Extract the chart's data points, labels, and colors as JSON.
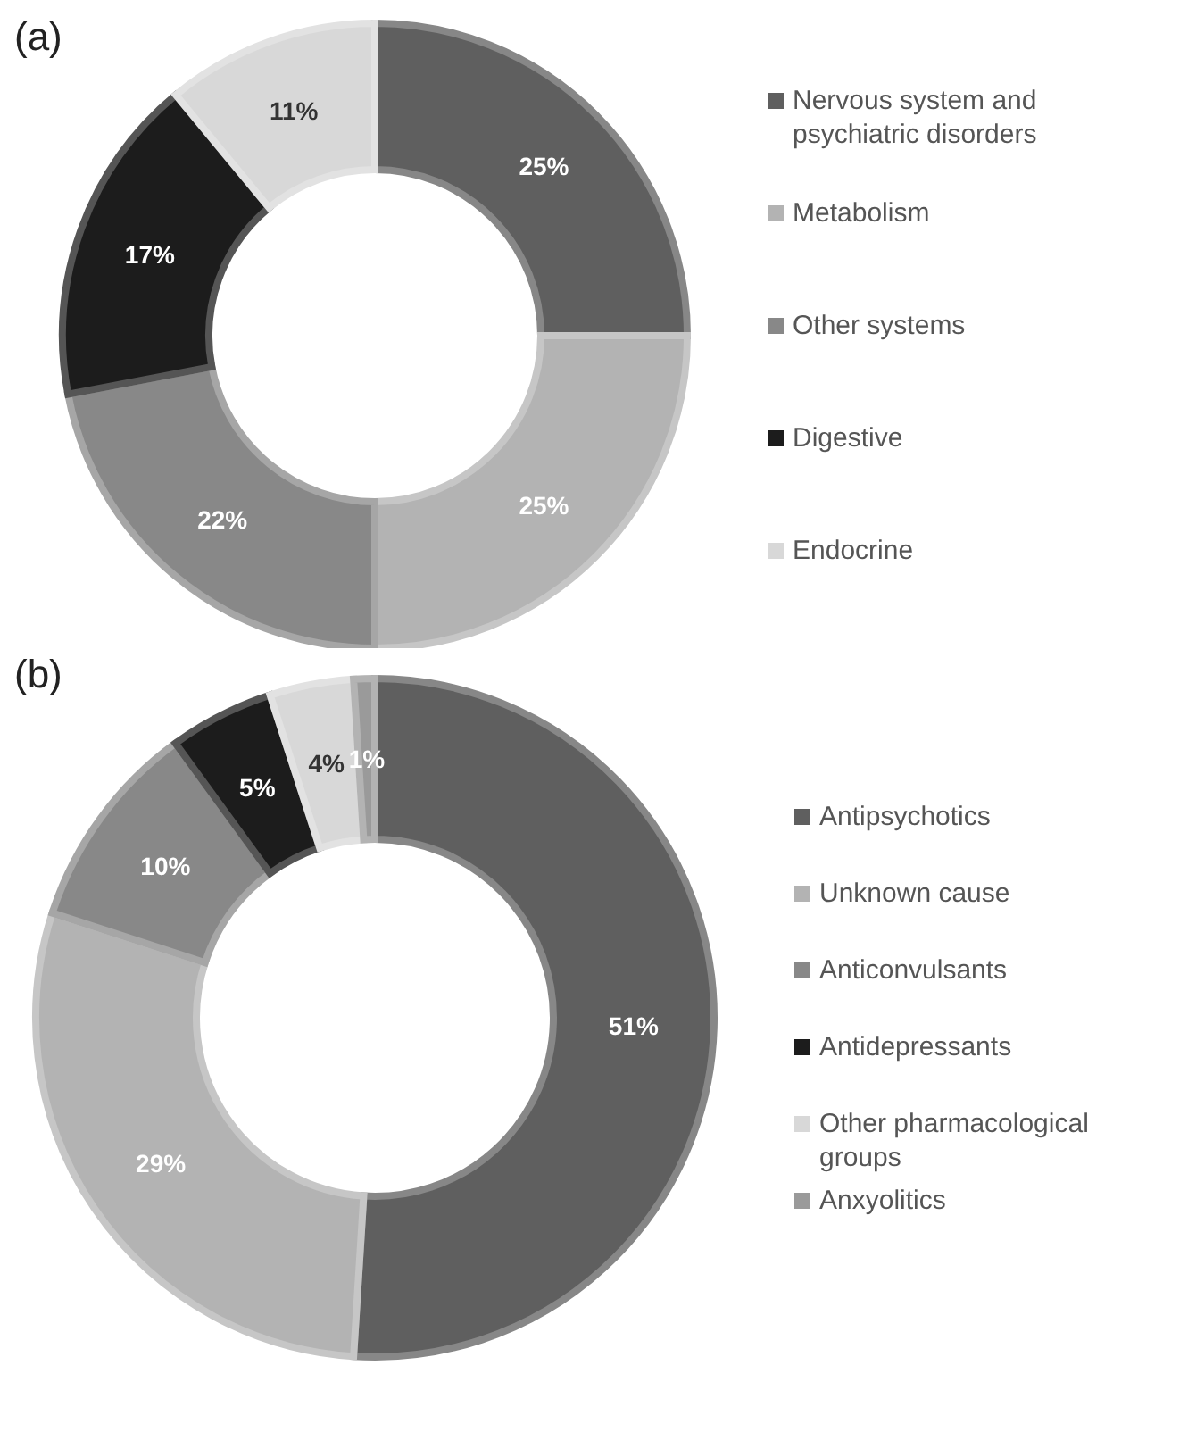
{
  "chart_data": [
    {
      "type": "donut",
      "title": "(a)",
      "categories": [
        "Nervous system and psychiatric disorders",
        "Metabolism",
        "Other systems",
        "Digestive",
        "Endocrine"
      ],
      "values": [
        25,
        25,
        22,
        17,
        11
      ],
      "value_labels": [
        "25%",
        "25%",
        "22%",
        "17%",
        "11%"
      ],
      "colors": [
        "#5f5f5f",
        "#b3b3b3",
        "#888888",
        "#1c1c1c",
        "#d8d8d8"
      ],
      "legend": "right"
    },
    {
      "type": "donut",
      "title": "(b)",
      "categories": [
        "Antipsychotics",
        "Unknown cause",
        "Anticonvulsants",
        "Antidepressants",
        "Other pharmacological groups",
        "Anxyolitics"
      ],
      "values": [
        51,
        29,
        10,
        5,
        4,
        1
      ],
      "value_labels": [
        "51%",
        "29%",
        "10%",
        "5%",
        "4%",
        "1%"
      ],
      "colors": [
        "#5f5f5f",
        "#b3b3b3",
        "#888888",
        "#1c1c1c",
        "#d8d8d8",
        "#9a9a9a"
      ],
      "legend": "right"
    }
  ]
}
